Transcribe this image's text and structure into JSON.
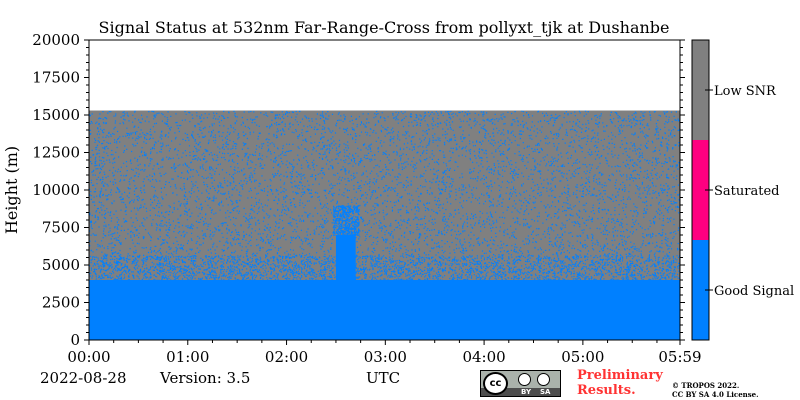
{
  "chart_data": {
    "type": "heatmap",
    "title": "Signal Status at 532nm Far-Range-Cross from pollyxt_tjk at Dushanbe",
    "xlabel": "",
    "ylabel": "Height (m)",
    "x_tick_labels": [
      "00:00",
      "01:00",
      "02:00",
      "03:00",
      "04:00",
      "05:00",
      "05:59"
    ],
    "x_tick_minutes": [
      0,
      60,
      120,
      180,
      240,
      300,
      359
    ],
    "xlim_minutes": [
      0,
      359
    ],
    "y_ticks": [
      0,
      2500,
      5000,
      7500,
      10000,
      12500,
      15000,
      17500,
      20000
    ],
    "y_tick_labels": [
      "0",
      "2500",
      "5000",
      "7500",
      "10000",
      "12500",
      "15000",
      "17500",
      "20000"
    ],
    "ylim": [
      0,
      20000
    ],
    "data_top_height": 15300,
    "good_signal_top_height": 4000,
    "aerosol_plume": {
      "start_minute": 150,
      "end_minute": 162,
      "top_height": 9000
    },
    "colorbar": {
      "categories": [
        "Good Signal",
        "Saturated",
        "Low SNR"
      ],
      "colors": [
        "#0080ff",
        "#ff0080",
        "#808080"
      ]
    }
  },
  "footer": {
    "date": "2022-08-28",
    "version": "Version: 3.5",
    "utc": "UTC",
    "license_badge": {
      "cc": "cc",
      "by": "BY",
      "sa": "SA"
    },
    "preliminary_line1": "Preliminary",
    "preliminary_line2": "Results.",
    "copyright_line1": "© TROPOS 2022.",
    "copyright_line2": "CC BY SA 4.0 License."
  }
}
